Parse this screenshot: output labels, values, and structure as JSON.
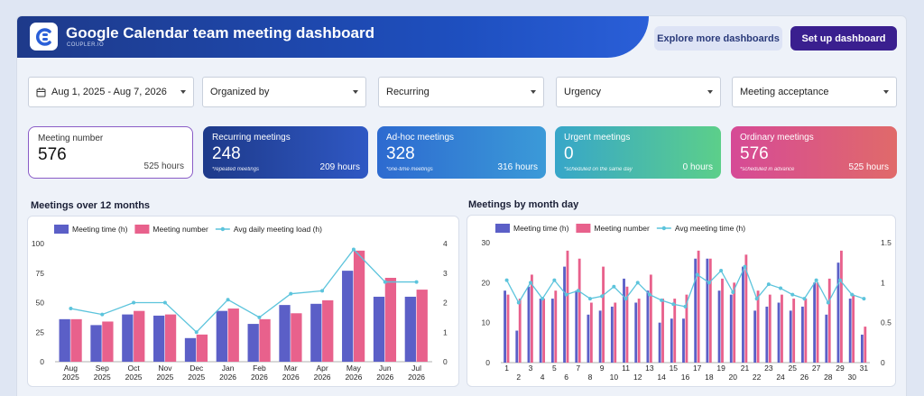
{
  "header": {
    "title": "Google Calendar team meeting dashboard",
    "brand": "COUPLER.IO",
    "explore_label": "Explore more dashboards",
    "setup_label": "Set up dashboard"
  },
  "filters": {
    "date_range": "Aug 1, 2025 - Aug 7, 2026",
    "organized_by": "Organized by",
    "recurring": "Recurring",
    "urgency": "Urgency",
    "acceptance": "Meeting acceptance"
  },
  "kpis": [
    {
      "label": "Meeting number",
      "value": "576",
      "sub": "",
      "hours": "525 hours"
    },
    {
      "label": "Recurring meetings",
      "value": "248",
      "sub": "*repeated meetings",
      "hours": "209 hours"
    },
    {
      "label": "Ad-hoc meetings",
      "value": "328",
      "sub": "*one-time meetings",
      "hours": "316 hours"
    },
    {
      "label": "Urgent meetings",
      "value": "0",
      "sub": "*scheduled on the same day",
      "hours": "0 hours"
    },
    {
      "label": "Ordinary meetings",
      "value": "576",
      "sub": "*scheduled in advance",
      "hours": "525 hours"
    }
  ],
  "colors": {
    "time_bar": "#5b5fc7",
    "number_bar": "#e8618c",
    "line": "#5cc4dc"
  },
  "chart_data": [
    {
      "type": "bar",
      "title": "Meetings over 12 months",
      "categories": [
        "Aug 2025",
        "Sep 2025",
        "Oct 2025",
        "Nov 2025",
        "Dec 2025",
        "Jan 2026",
        "Feb 2026",
        "Mar 2026",
        "Apr 2026",
        "May 2026",
        "Jun 2026",
        "Jul 2026"
      ],
      "series": [
        {
          "name": "Meeting time (h)",
          "kind": "bar",
          "axis": "left",
          "values": [
            36,
            31,
            40,
            39,
            20,
            43,
            32,
            48,
            49,
            77,
            55,
            55
          ]
        },
        {
          "name": "Meeting number",
          "kind": "bar",
          "axis": "left",
          "values": [
            36,
            34,
            43,
            40,
            23,
            45,
            36,
            41,
            52,
            94,
            71,
            61
          ]
        },
        {
          "name": "Avg daily meeting load (h)",
          "kind": "line",
          "axis": "right",
          "values": [
            1.8,
            1.6,
            2.0,
            2.0,
            1.0,
            2.1,
            1.5,
            2.3,
            2.4,
            3.8,
            2.7,
            2.7
          ]
        }
      ],
      "ylim": [
        0,
        100
      ],
      "yticks": [
        0,
        25,
        50,
        75,
        100
      ],
      "y2lim": [
        0,
        4
      ],
      "y2ticks": [
        0,
        1,
        2,
        3,
        4
      ]
    },
    {
      "type": "bar",
      "title": "Meetings by month day",
      "categories": [
        "1",
        "2",
        "3",
        "4",
        "5",
        "6",
        "7",
        "8",
        "9",
        "10",
        "11",
        "12",
        "13",
        "14",
        "15",
        "16",
        "17",
        "18",
        "19",
        "20",
        "21",
        "22",
        "23",
        "24",
        "25",
        "26",
        "27",
        "28",
        "29",
        "30",
        "31"
      ],
      "series": [
        {
          "name": "Meeting time (h)",
          "kind": "bar",
          "axis": "left",
          "values": [
            18,
            8,
            19,
            16,
            16,
            24,
            18,
            12,
            13,
            14,
            21,
            15,
            18,
            10,
            11,
            11,
            26,
            26,
            18,
            17,
            24,
            13,
            14,
            15,
            13,
            14,
            20,
            12,
            25,
            16,
            7
          ]
        },
        {
          "name": "Meeting number",
          "kind": "bar",
          "axis": "left",
          "values": [
            17,
            16,
            22,
            16,
            18,
            28,
            26,
            15,
            24,
            15,
            19,
            16,
            22,
            16,
            16,
            17,
            28,
            26,
            21,
            20,
            27,
            18,
            17,
            17,
            16,
            16,
            20,
            21,
            28,
            17,
            9
          ]
        },
        {
          "name": "Avg meeting time (h)",
          "kind": "line",
          "axis": "right",
          "values": [
            1.03,
            0.75,
            1.0,
            0.8,
            1.03,
            0.85,
            0.9,
            0.8,
            0.83,
            0.95,
            0.8,
            1.0,
            0.85,
            0.78,
            0.73,
            0.7,
            1.1,
            1.0,
            1.15,
            0.88,
            1.2,
            0.8,
            0.98,
            0.93,
            0.85,
            0.8,
            1.03,
            0.75,
            1.03,
            0.85,
            0.8
          ]
        }
      ],
      "ylim": [
        0,
        30
      ],
      "yticks": [
        0,
        10,
        20,
        30
      ],
      "y2lim": [
        0,
        1.5
      ],
      "y2ticks": [
        0,
        0.5,
        1,
        1.5
      ]
    }
  ]
}
